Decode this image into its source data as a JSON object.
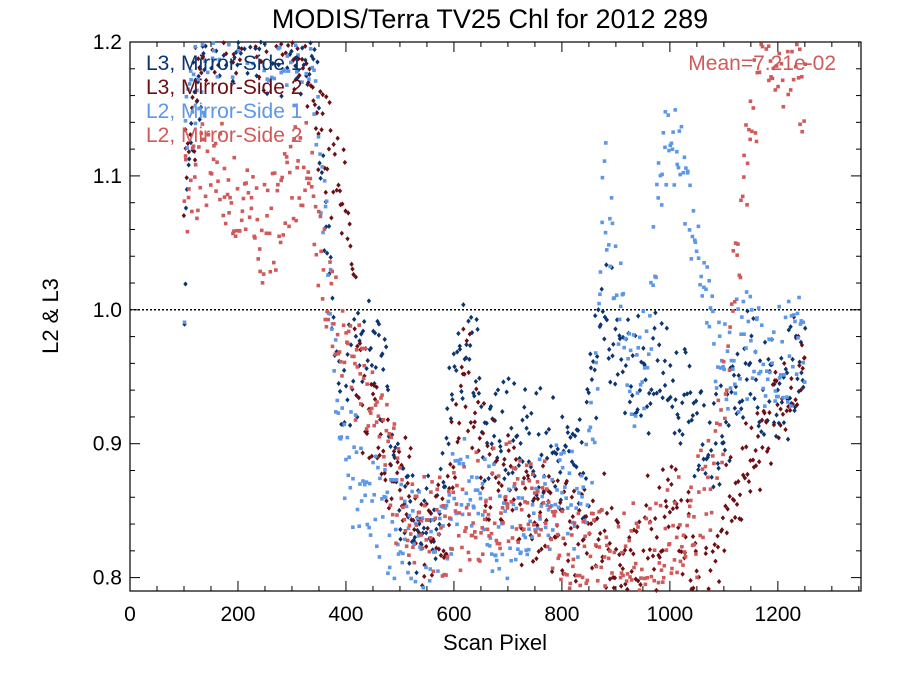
{
  "chart_data": {
    "type": "scatter",
    "title": "MODIS/Terra TV25 Chl for 2012 289",
    "xlabel": "Scan Pixel",
    "ylabel": "L2 & L3",
    "xlim": [
      0,
      1354
    ],
    "ylim": [
      0.79,
      1.2
    ],
    "x_ticks": [
      0,
      200,
      400,
      600,
      800,
      1000,
      1200
    ],
    "y_ticks": [
      0.8,
      0.9,
      1.0,
      1.1,
      1.2
    ],
    "x_tick_labels": [
      "0",
      "200",
      "400",
      "600",
      "800",
      "1000",
      "1200"
    ],
    "y_tick_labels": [
      "0.8",
      "0.9",
      "1.0",
      "1.1",
      "1.2"
    ],
    "reference_line": {
      "y": 1.0,
      "style": "dotted"
    },
    "annotation": "Mean=7.21e-02",
    "annotation_color": "#d05a5a",
    "legend_placement": "top-left",
    "series": [
      {
        "name": "L3, Mirror-Side 1",
        "color": "#0b3470",
        "marker": "diamond",
        "profile": [
          [
            100,
            0.98
          ],
          [
            110,
            1.14
          ],
          [
            150,
            1.2
          ],
          [
            200,
            1.21
          ],
          [
            250,
            1.2
          ],
          [
            300,
            1.21
          ],
          [
            340,
            1.2
          ],
          [
            360,
            1.07
          ],
          [
            375,
            1.0
          ],
          [
            390,
            0.93
          ],
          [
            420,
            0.96
          ],
          [
            460,
            0.97
          ],
          [
            480,
            0.92
          ],
          [
            500,
            0.87
          ],
          [
            540,
            0.84
          ],
          [
            580,
            0.85
          ],
          [
            600,
            0.96
          ],
          [
            640,
            0.97
          ],
          [
            660,
            0.9
          ],
          [
            700,
            0.91
          ],
          [
            760,
            0.9
          ],
          [
            800,
            0.89
          ],
          [
            840,
            0.88
          ],
          [
            860,
            0.96
          ],
          [
            880,
            1.01
          ],
          [
            900,
            0.97
          ],
          [
            930,
            0.95
          ],
          [
            960,
            0.95
          ],
          [
            990,
            0.96
          ],
          [
            1020,
            0.94
          ],
          [
            1050,
            0.9
          ],
          [
            1080,
            0.9
          ],
          [
            1100,
            0.92
          ],
          [
            1130,
            0.96
          ],
          [
            1160,
            0.95
          ],
          [
            1200,
            0.93
          ],
          [
            1230,
            0.95
          ],
          [
            1250,
            0.97
          ]
        ]
      },
      {
        "name": "L3, Mirror-Side 2",
        "color": "#6b0f14",
        "marker": "diamond",
        "profile": [
          [
            100,
            1.1
          ],
          [
            130,
            1.18
          ],
          [
            160,
            1.21
          ],
          [
            200,
            1.21
          ],
          [
            260,
            1.21
          ],
          [
            300,
            1.21
          ],
          [
            330,
            1.18
          ],
          [
            360,
            1.12
          ],
          [
            400,
            1.08
          ],
          [
            430,
            0.94
          ],
          [
            460,
            0.9
          ],
          [
            500,
            0.87
          ],
          [
            540,
            0.84
          ],
          [
            580,
            0.83
          ],
          [
            600,
            0.9
          ],
          [
            620,
            0.96
          ],
          [
            660,
            0.88
          ],
          [
            700,
            0.87
          ],
          [
            740,
            0.84
          ],
          [
            780,
            0.85
          ],
          [
            820,
            0.83
          ],
          [
            840,
            0.85
          ],
          [
            880,
            0.83
          ],
          [
            920,
            0.81
          ],
          [
            960,
            0.83
          ],
          [
            1000,
            0.85
          ],
          [
            1030,
            0.84
          ],
          [
            1050,
            0.8
          ],
          [
            1080,
            0.8
          ],
          [
            1100,
            0.84
          ],
          [
            1130,
            0.88
          ],
          [
            1160,
            0.9
          ],
          [
            1200,
            0.93
          ],
          [
            1230,
            0.95
          ],
          [
            1250,
            0.97
          ]
        ]
      },
      {
        "name": "L2, Mirror-Side 1",
        "color": "#5d97e8",
        "marker": "square",
        "profile": [
          [
            100,
            1.14
          ],
          [
            150,
            1.2
          ],
          [
            200,
            1.21
          ],
          [
            260,
            1.2
          ],
          [
            330,
            1.2
          ],
          [
            360,
            1.08
          ],
          [
            380,
            0.96
          ],
          [
            400,
            0.88
          ],
          [
            440,
            0.87
          ],
          [
            470,
            0.84
          ],
          [
            500,
            0.84
          ],
          [
            540,
            0.82
          ],
          [
            580,
            0.82
          ],
          [
            600,
            0.86
          ],
          [
            640,
            0.87
          ],
          [
            680,
            0.84
          ],
          [
            720,
            0.84
          ],
          [
            760,
            0.85
          ],
          [
            800,
            0.86
          ],
          [
            840,
            0.85
          ],
          [
            860,
            0.93
          ],
          [
            880,
            1.1
          ],
          [
            900,
            1.02
          ],
          [
            930,
            0.95
          ],
          [
            960,
            0.98
          ],
          [
            990,
            1.12
          ],
          [
            1020,
            1.12
          ],
          [
            1050,
            1.05
          ],
          [
            1080,
            0.98
          ],
          [
            1110,
            0.96
          ],
          [
            1150,
            0.98
          ],
          [
            1200,
            0.96
          ],
          [
            1250,
            0.98
          ]
        ]
      },
      {
        "name": "L2, Mirror-Side 2",
        "color": "#d05a5a",
        "marker": "square",
        "profile": [
          [
            100,
            1.08
          ],
          [
            150,
            1.12
          ],
          [
            200,
            1.08
          ],
          [
            250,
            1.05
          ],
          [
            300,
            1.1
          ],
          [
            330,
            1.11
          ],
          [
            360,
            1.02
          ],
          [
            380,
            0.99
          ],
          [
            400,
            0.97
          ],
          [
            440,
            0.94
          ],
          [
            470,
            0.9
          ],
          [
            500,
            0.86
          ],
          [
            540,
            0.84
          ],
          [
            580,
            0.83
          ],
          [
            600,
            0.84
          ],
          [
            640,
            0.85
          ],
          [
            680,
            0.86
          ],
          [
            720,
            0.86
          ],
          [
            760,
            0.85
          ],
          [
            800,
            0.82
          ],
          [
            840,
            0.81
          ],
          [
            880,
            0.81
          ],
          [
            920,
            0.81
          ],
          [
            960,
            0.82
          ],
          [
            1000,
            0.83
          ],
          [
            1040,
            0.84
          ],
          [
            1070,
            0.86
          ],
          [
            1100,
            0.93
          ],
          [
            1120,
            1.03
          ],
          [
            1150,
            1.15
          ],
          [
            1180,
            1.2
          ],
          [
            1220,
            1.19
          ],
          [
            1250,
            1.16
          ]
        ]
      }
    ]
  }
}
